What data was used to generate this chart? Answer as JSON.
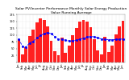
{
  "title": "Solar PV/Inverter Performance Monthly Solar Energy Production Value Running Average",
  "bar_values": [
    85,
    30,
    55,
    95,
    120,
    145,
    160,
    155,
    130,
    80,
    40,
    25,
    90,
    35,
    60,
    100,
    125,
    150,
    155,
    148,
    128,
    85,
    45,
    28,
    92,
    38,
    62,
    102,
    130,
    152
  ],
  "running_avg": [
    85,
    57.5,
    56.7,
    71.3,
    77,
    89.2,
    97.9,
    105,
    108.9,
    104.5,
    94.1,
    84.6,
    84.6,
    80.4,
    78.3,
    78.9,
    81.2,
    84.8,
    88.4,
    92.1,
    94.3,
    93.4,
    89.7,
    85.5,
    84.6,
    82.8,
    82.2,
    83.3,
    84.4,
    85.3
  ],
  "bar_color": "#ff2020",
  "avg_color": "#0000ff",
  "background_color": "#ffffff",
  "grid_color": "#c8c8c8",
  "ylim": [
    0,
    175
  ],
  "ytick_labels": [
    "",
    "25",
    "50",
    "75",
    "100",
    "125",
    "150",
    "175"
  ],
  "ytick_values": [
    0,
    25,
    50,
    75,
    100,
    125,
    150,
    175
  ],
  "title_fontsize": 3.2,
  "tick_fontsize": 2.5,
  "bar_width": 0.85,
  "months": [
    "Jan",
    "Feb",
    "Mar",
    "Apr",
    "May",
    "Jun",
    "Jul",
    "Aug",
    "Sep",
    "Oct",
    "Nov",
    "Dec"
  ]
}
